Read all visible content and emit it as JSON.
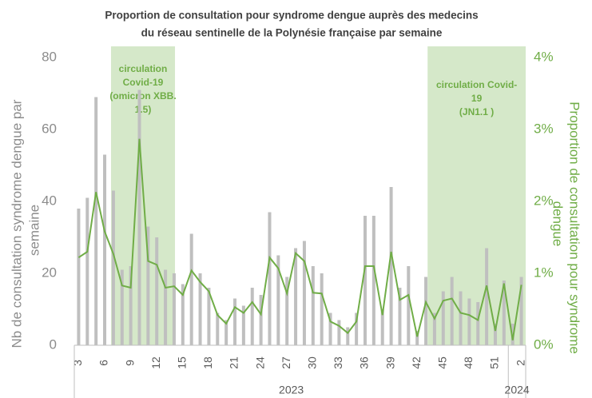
{
  "chart_data": {
    "type": "bar-line",
    "title": [
      "Proportion de consultation pour syndrome dengue auprès des medecins",
      "du réseau sentinelle de la Polynésie française par semaine"
    ],
    "ylabel": [
      "Nb de consultation syndrome dengue par",
      "semaine"
    ],
    "y2label": [
      "Proportion de consultation pour syndrome",
      "dengue"
    ],
    "categories": [
      "3",
      null,
      null,
      "6",
      null,
      null,
      "9",
      null,
      null,
      "12",
      null,
      null,
      "15",
      null,
      null,
      "18",
      null,
      null,
      "21",
      null,
      null,
      "24",
      null,
      null,
      "27",
      null,
      null,
      "30",
      null,
      null,
      "33",
      null,
      null,
      "36",
      null,
      null,
      "39",
      null,
      null,
      "42",
      null,
      null,
      "45",
      null,
      null,
      "48",
      null,
      null,
      "51",
      null,
      null,
      "2"
    ],
    "year_labels": [
      "2023",
      "2024"
    ],
    "series": [
      {
        "name": "Nb de consultation",
        "type": "bar",
        "color": "#bfbfbf",
        "values": [
          38,
          41,
          69,
          53,
          43,
          21,
          22,
          71,
          33,
          30,
          21,
          20,
          17,
          31,
          20,
          16,
          9,
          7,
          13,
          11,
          16,
          14,
          37,
          25,
          19,
          27,
          29,
          22,
          20,
          9,
          7,
          5,
          9,
          36,
          36,
          10,
          44,
          16,
          22,
          4,
          19,
          9,
          15,
          19,
          15,
          13,
          12,
          27,
          6,
          18,
          6,
          19
        ]
      },
      {
        "name": "Proportion",
        "type": "line",
        "axis": "y2",
        "color": "#70ad47",
        "values": [
          1.22,
          1.3,
          2.13,
          1.58,
          1.27,
          0.83,
          0.8,
          2.87,
          1.17,
          1.12,
          0.8,
          0.82,
          0.7,
          1.04,
          0.88,
          0.75,
          0.42,
          0.3,
          0.53,
          0.45,
          0.6,
          0.43,
          1.22,
          1.07,
          0.72,
          1.28,
          1.17,
          0.73,
          0.72,
          0.33,
          0.27,
          0.17,
          0.33,
          1.1,
          1.1,
          0.42,
          1.3,
          0.63,
          0.7,
          0.12,
          0.6,
          0.37,
          0.62,
          0.65,
          0.45,
          0.42,
          0.35,
          0.83,
          0.2,
          0.86,
          0.07,
          0.84
        ]
      }
    ],
    "ylim": [
      0,
      80
    ],
    "yticks": [
      0,
      20,
      40,
      60,
      80
    ],
    "y2lim": [
      0,
      4
    ],
    "y2ticks": [
      {
        "value": 0,
        "label": "0%"
      },
      {
        "value": 1,
        "label": "1%"
      },
      {
        "value": 2,
        "label": "2%"
      },
      {
        "value": 3,
        "label": "3%"
      },
      {
        "value": 4,
        "label": "4%"
      }
    ],
    "annotations": [
      {
        "lines": [
          "circulation",
          "Covid-19",
          "(omicron XBB.",
          "1.5)"
        ]
      },
      {
        "lines": [
          "circulation Covid-",
          "19",
          "(JN1.1 )"
        ]
      }
    ]
  }
}
